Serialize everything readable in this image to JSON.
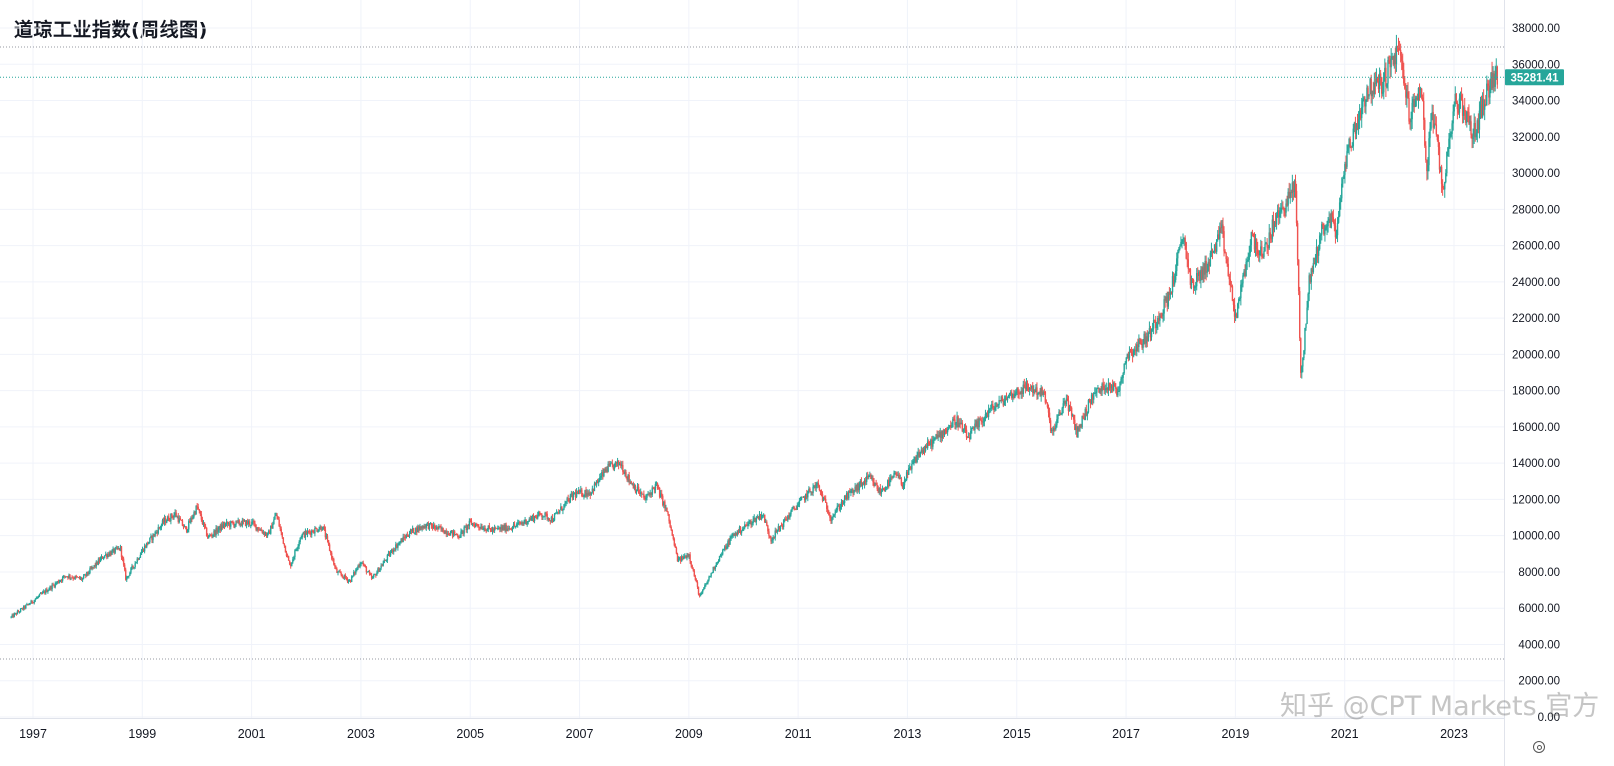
{
  "chart_title": "道琼工业指数(周线图)",
  "watermark": "知乎 @CPT Markets 官方",
  "settings_icon": "settings-icon",
  "colors": {
    "up": "#26a69a",
    "down": "#ef5350",
    "grid": "#f0f3fa",
    "price_line": "#26a69a",
    "dotted_line": "#9598a1",
    "axis_text": "#131722"
  },
  "chart_data": {
    "type": "candlestick",
    "title": "道琼工业指数(周线图)",
    "interval": "weekly",
    "xlabel": "",
    "ylabel": "",
    "ylim": [
      0,
      38000
    ],
    "y_ticks": [
      "0.00",
      "2000.00",
      "4000.00",
      "6000.00",
      "8000.00",
      "10000.00",
      "12000.00",
      "14000.00",
      "16000.00",
      "18000.00",
      "20000.00",
      "22000.00",
      "24000.00",
      "26000.00",
      "28000.00",
      "30000.00",
      "32000.00",
      "34000.00",
      "36000.00",
      "38000.00"
    ],
    "x_ticks": [
      "1997",
      "1999",
      "2001",
      "2003",
      "2005",
      "2007",
      "2009",
      "2011",
      "2013",
      "2015",
      "2017",
      "2019",
      "2021",
      "2023"
    ],
    "x_range": [
      1996.6,
      2023.8
    ],
    "last_price": 35281.41,
    "last_price_label": "35281.41",
    "dotted_levels": [
      36950,
      3200
    ],
    "grid": true,
    "series_path": [
      [
        1996.6,
        5500
      ],
      [
        1997.0,
        6400
      ],
      [
        1997.6,
        7800
      ],
      [
        1997.9,
        7600
      ],
      [
        1998.3,
        8900
      ],
      [
        1998.6,
        9300
      ],
      [
        1998.7,
        7600
      ],
      [
        1999.0,
        9200
      ],
      [
        1999.4,
        10800
      ],
      [
        1999.6,
        11200
      ],
      [
        1999.8,
        10300
      ],
      [
        2000.0,
        11600
      ],
      [
        2000.2,
        9900
      ],
      [
        2000.5,
        10600
      ],
      [
        2000.8,
        10700
      ],
      [
        2001.0,
        10700
      ],
      [
        2001.3,
        10000
      ],
      [
        2001.45,
        11200
      ],
      [
        2001.7,
        8300
      ],
      [
        2001.9,
        10000
      ],
      [
        2002.3,
        10500
      ],
      [
        2002.55,
        8000
      ],
      [
        2002.8,
        7500
      ],
      [
        2003.0,
        8600
      ],
      [
        2003.2,
        7600
      ],
      [
        2003.6,
        9300
      ],
      [
        2003.9,
        10200
      ],
      [
        2004.2,
        10600
      ],
      [
        2004.8,
        10000
      ],
      [
        2005.0,
        10700
      ],
      [
        2005.4,
        10300
      ],
      [
        2005.8,
        10500
      ],
      [
        2006.3,
        11200
      ],
      [
        2006.5,
        10900
      ],
      [
        2006.9,
        12300
      ],
      [
        2007.2,
        12400
      ],
      [
        2007.5,
        13700
      ],
      [
        2007.75,
        14000
      ],
      [
        2007.9,
        13100
      ],
      [
        2008.2,
        12000
      ],
      [
        2008.4,
        12800
      ],
      [
        2008.6,
        11300
      ],
      [
        2008.8,
        8600
      ],
      [
        2009.0,
        9000
      ],
      [
        2009.2,
        6600
      ],
      [
        2009.5,
        8500
      ],
      [
        2009.8,
        10000
      ],
      [
        2010.2,
        10900
      ],
      [
        2010.35,
        11200
      ],
      [
        2010.5,
        9800
      ],
      [
        2010.9,
        11400
      ],
      [
        2011.2,
        12400
      ],
      [
        2011.35,
        12800
      ],
      [
        2011.6,
        11000
      ],
      [
        2011.9,
        12200
      ],
      [
        2012.3,
        13200
      ],
      [
        2012.5,
        12400
      ],
      [
        2012.8,
        13400
      ],
      [
        2012.9,
        12800
      ],
      [
        2013.2,
        14500
      ],
      [
        2013.5,
        15300
      ],
      [
        2013.9,
        16400
      ],
      [
        2014.1,
        15400
      ],
      [
        2014.5,
        16900
      ],
      [
        2014.9,
        17800
      ],
      [
        2015.2,
        18200
      ],
      [
        2015.5,
        17800
      ],
      [
        2015.65,
        15600
      ],
      [
        2015.9,
        17600
      ],
      [
        2016.1,
        15700
      ],
      [
        2016.4,
        17800
      ],
      [
        2016.7,
        18400
      ],
      [
        2016.85,
        17900
      ],
      [
        2017.0,
        19900
      ],
      [
        2017.4,
        21000
      ],
      [
        2017.8,
        23300
      ],
      [
        2018.05,
        26600
      ],
      [
        2018.2,
        23700
      ],
      [
        2018.5,
        25000
      ],
      [
        2018.75,
        26800
      ],
      [
        2019.0,
        22000
      ],
      [
        2019.3,
        26500
      ],
      [
        2019.5,
        25300
      ],
      [
        2019.7,
        27200
      ],
      [
        2020.1,
        29300
      ],
      [
        2020.2,
        18600
      ],
      [
        2020.35,
        24000
      ],
      [
        2020.6,
        27000
      ],
      [
        2020.8,
        27500
      ],
      [
        2020.85,
        26500
      ],
      [
        2021.0,
        30600
      ],
      [
        2021.4,
        34500
      ],
      [
        2021.7,
        35000
      ],
      [
        2021.9,
        36400
      ],
      [
        2022.0,
        36700
      ],
      [
        2022.2,
        33000
      ],
      [
        2022.4,
        35000
      ],
      [
        2022.5,
        30000
      ],
      [
        2022.6,
        33500
      ],
      [
        2022.8,
        29000
      ],
      [
        2023.0,
        34000
      ],
      [
        2023.2,
        33500
      ],
      [
        2023.35,
        32000
      ],
      [
        2023.55,
        34000
      ],
      [
        2023.7,
        35281
      ]
    ]
  }
}
